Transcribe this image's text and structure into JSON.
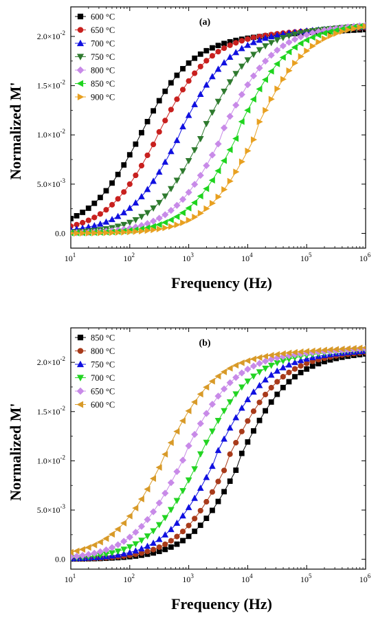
{
  "chart_data": [
    {
      "type": "scatter",
      "panel_label": "(a)",
      "xlabel": "Frequency (Hz)",
      "ylabel": "Normalized M'",
      "xscale": "log",
      "xlim": [
        10,
        1000000
      ],
      "ylim": [
        -0.0015,
        0.023
      ],
      "xticks": [
        {
          "value": 10,
          "mant": "10",
          "exp": "1"
        },
        {
          "value": 100,
          "mant": "10",
          "exp": "2"
        },
        {
          "value": 1000,
          "mant": "10",
          "exp": "3"
        },
        {
          "value": 10000,
          "mant": "10",
          "exp": "4"
        },
        {
          "value": 100000,
          "mant": "10",
          "exp": "5"
        },
        {
          "value": 1000000,
          "mant": "10",
          "exp": "6"
        }
      ],
      "yticks": [
        {
          "value": 0,
          "label": "0.0"
        },
        {
          "value": 0.005,
          "label": "5.0×10",
          "exp": "-3"
        },
        {
          "value": 0.01,
          "label": "1.0×10",
          "exp": "-2"
        },
        {
          "value": 0.015,
          "label": "1.5×10",
          "exp": "-2"
        },
        {
          "value": 0.02,
          "label": "2.0×10",
          "exp": "-2"
        }
      ],
      "legend_position": "top-left",
      "series": [
        {
          "name": "600 °C",
          "color": "#000000",
          "marker": "square",
          "baseline": 0.0003,
          "plateau": 0.0195,
          "f0": 150,
          "slope": 1.0
        },
        {
          "name": "650 °C",
          "color": "#c8201e",
          "marker": "circle",
          "baseline": 0.0001,
          "plateau": 0.0197,
          "f0": 300,
          "slope": 1.0
        },
        {
          "name": "700 °C",
          "color": "#1010e0",
          "marker": "triangle-up",
          "baseline": 0.0001,
          "plateau": 0.0198,
          "f0": 700,
          "slope": 1.0
        },
        {
          "name": "750 °C",
          "color": "#2e7a2e",
          "marker": "triangle-down",
          "baseline": 0.0,
          "plateau": 0.0199,
          "f0": 1700,
          "slope": 1.0
        },
        {
          "name": "800 °C",
          "color": "#c88ae8",
          "marker": "diamond",
          "baseline": 0.0,
          "plateau": 0.02,
          "f0": 3800,
          "slope": 1.0
        },
        {
          "name": "850 °C",
          "color": "#1ed41e",
          "marker": "triangle-left",
          "baseline": 0.0,
          "plateau": 0.02,
          "f0": 6800,
          "slope": 1.0
        },
        {
          "name": "900 °C",
          "color": "#e8a020",
          "marker": "triangle-right",
          "baseline": 0.0,
          "plateau": 0.0201,
          "f0": 14000,
          "slope": 1.0
        }
      ]
    },
    {
      "type": "scatter",
      "panel_label": "(b)",
      "xlabel": "Frequency (Hz)",
      "ylabel": "Normalized M'",
      "xscale": "log",
      "xlim": [
        10,
        1000000
      ],
      "ylim": [
        -0.001,
        0.0235
      ],
      "xticks": [
        {
          "value": 10,
          "mant": "10",
          "exp": "1"
        },
        {
          "value": 100,
          "mant": "10",
          "exp": "2"
        },
        {
          "value": 1000,
          "mant": "10",
          "exp": "3"
        },
        {
          "value": 10000,
          "mant": "10",
          "exp": "4"
        },
        {
          "value": 100000,
          "mant": "10",
          "exp": "5"
        },
        {
          "value": 1000000,
          "mant": "10",
          "exp": "6"
        }
      ],
      "yticks": [
        {
          "value": 0,
          "label": "0.0"
        },
        {
          "value": 0.005,
          "label": "5.0×10",
          "exp": "-3"
        },
        {
          "value": 0.01,
          "label": "1.0×10",
          "exp": "-2"
        },
        {
          "value": 0.015,
          "label": "1.5×10",
          "exp": "-2"
        },
        {
          "value": 0.02,
          "label": "2.0×10",
          "exp": "-2"
        }
      ],
      "legend_position": "top-left",
      "series": [
        {
          "name": "850 °C",
          "color": "#000000",
          "marker": "square",
          "baseline": 0.0,
          "plateau": 0.0198,
          "f0": 7500,
          "slope": 1.0
        },
        {
          "name": "800 °C",
          "color": "#a83a1a",
          "marker": "circle",
          "baseline": 0.0,
          "plateau": 0.0199,
          "f0": 4800,
          "slope": 1.0
        },
        {
          "name": "750 °C",
          "color": "#1010e0",
          "marker": "triangle-up",
          "baseline": 0.0,
          "plateau": 0.02,
          "f0": 2800,
          "slope": 1.0
        },
        {
          "name": "700 °C",
          "color": "#22d422",
          "marker": "triangle-down",
          "baseline": 0.0,
          "plateau": 0.0201,
          "f0": 1500,
          "slope": 1.0
        },
        {
          "name": "650 °C",
          "color": "#c88ae8",
          "marker": "diamond",
          "baseline": 0.0,
          "plateau": 0.0202,
          "f0": 800,
          "slope": 1.0
        },
        {
          "name": "600 °C",
          "color": "#d89a28",
          "marker": "triangle-left",
          "baseline": 0.0002,
          "plateau": 0.0203,
          "f0": 380,
          "slope": 1.0
        }
      ]
    }
  ]
}
